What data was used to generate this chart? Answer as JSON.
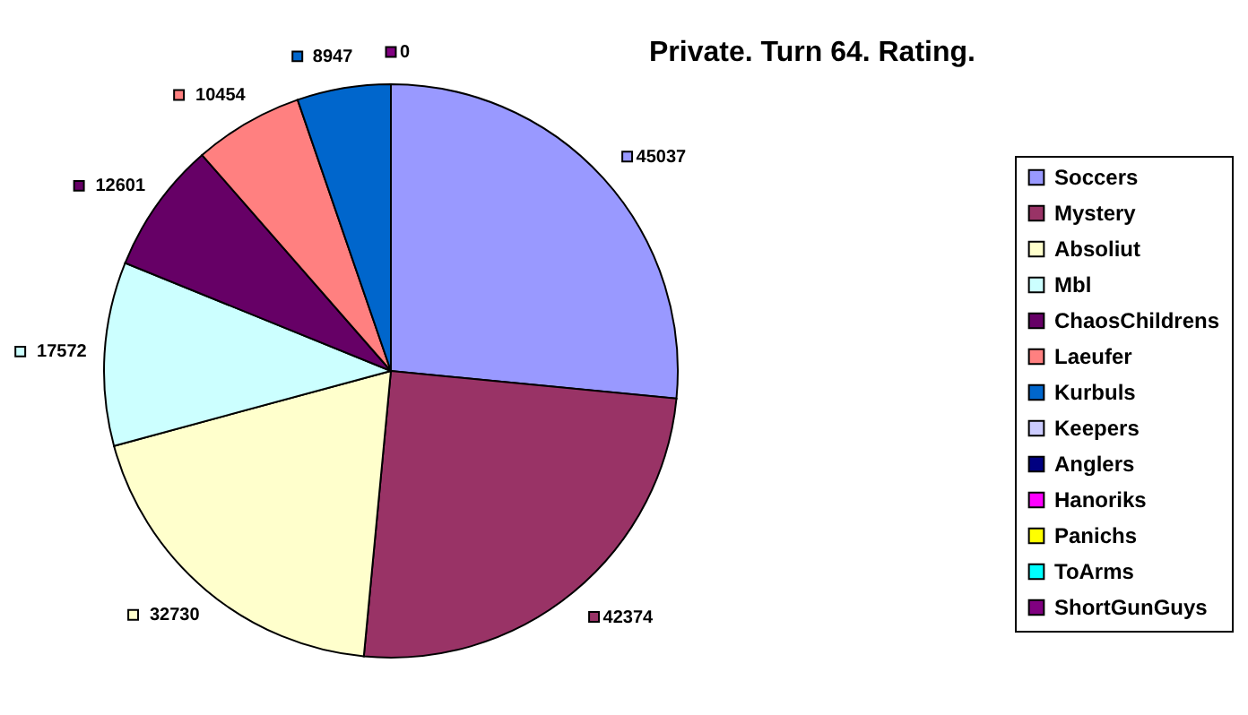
{
  "chart_data": {
    "type": "pie",
    "title": "Private. Turn 64. Rating.",
    "categories": [
      "Soccers",
      "Mystery",
      "Absoliut",
      "Mbl",
      "ChaosChildrens",
      "Laeufer",
      "Kurbuls",
      "Keepers",
      "Anglers",
      "Hanoriks",
      "Panichs",
      "ToArms",
      "ShortGunGuys"
    ],
    "values": [
      45037,
      42374,
      32730,
      17572,
      12601,
      10454,
      8947,
      0,
      0,
      0,
      0,
      0,
      0
    ],
    "value_labels": [
      "45037",
      "42374",
      "32730",
      "17572",
      "12601",
      "10454",
      "8947",
      null,
      null,
      null,
      null,
      null,
      "0"
    ],
    "colors": [
      "#9999ff",
      "#993366",
      "#ffffcc",
      "#ccffff",
      "#660066",
      "#ff8080",
      "#0066cc",
      "#ccccff",
      "#000080",
      "#ff00ff",
      "#ffff00",
      "#00ffff",
      "#800080"
    ],
    "legend": "right"
  }
}
